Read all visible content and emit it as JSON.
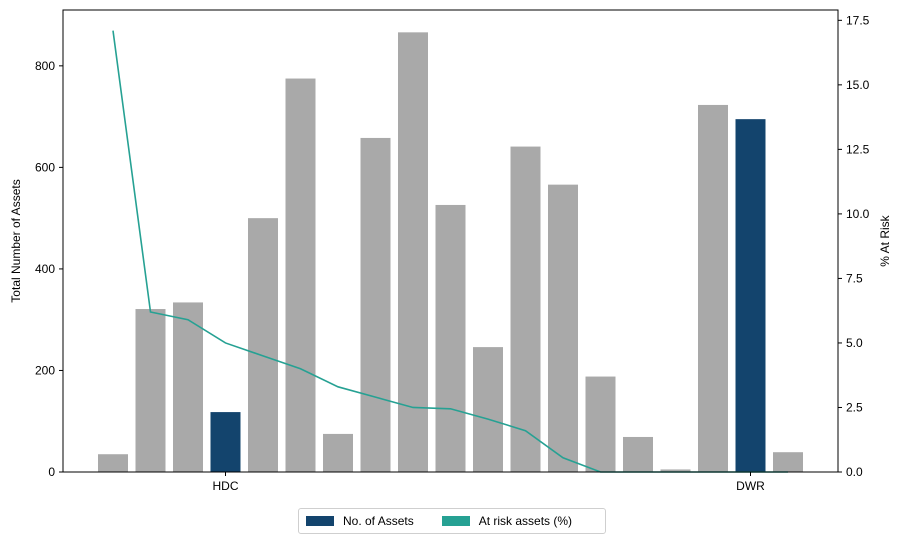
{
  "chart_data": {
    "type": "bar",
    "categories": [
      "",
      "",
      "",
      "HDC",
      "",
      "",
      "",
      "",
      "",
      "",
      "",
      "",
      "",
      "",
      "",
      "",
      "",
      "DWR",
      ""
    ],
    "series": [
      {
        "name": "No. of Assets",
        "axis": "left",
        "values": [
          35,
          321,
          334,
          118,
          500,
          775,
          75,
          658,
          866,
          526,
          246,
          641,
          566,
          188,
          69,
          5,
          723,
          695,
          39
        ],
        "highlight_indices": [
          3,
          17
        ]
      },
      {
        "name": "At risk assets (%)",
        "axis": "right",
        "type": "line",
        "values": [
          17.1,
          6.2,
          5.9,
          5.0,
          4.5,
          4.0,
          3.3,
          2.9,
          2.5,
          2.45,
          2.05,
          1.6,
          0.55,
          0.0,
          0.0,
          0.0,
          0.0,
          0.0,
          0.0
        ]
      }
    ],
    "ylabel": "Total Number of Assets",
    "y2label": "% At Risk",
    "ylim": [
      0,
      910
    ],
    "y2lim": [
      0,
      17.9
    ],
    "yticks": [
      "0",
      "200",
      "400",
      "600",
      "800"
    ],
    "y2ticks": [
      "0.0",
      "2.5",
      "5.0",
      "7.5",
      "10.0",
      "12.5",
      "15.0",
      "17.5"
    ],
    "grid": false,
    "legend_position": "bottom-center",
    "colors": {
      "bar_default": "#a9a9a9",
      "bar_highlight": "#13446d",
      "line": "#26a193",
      "legend_bar": "#13446d",
      "legend_line": "#26a193"
    }
  }
}
